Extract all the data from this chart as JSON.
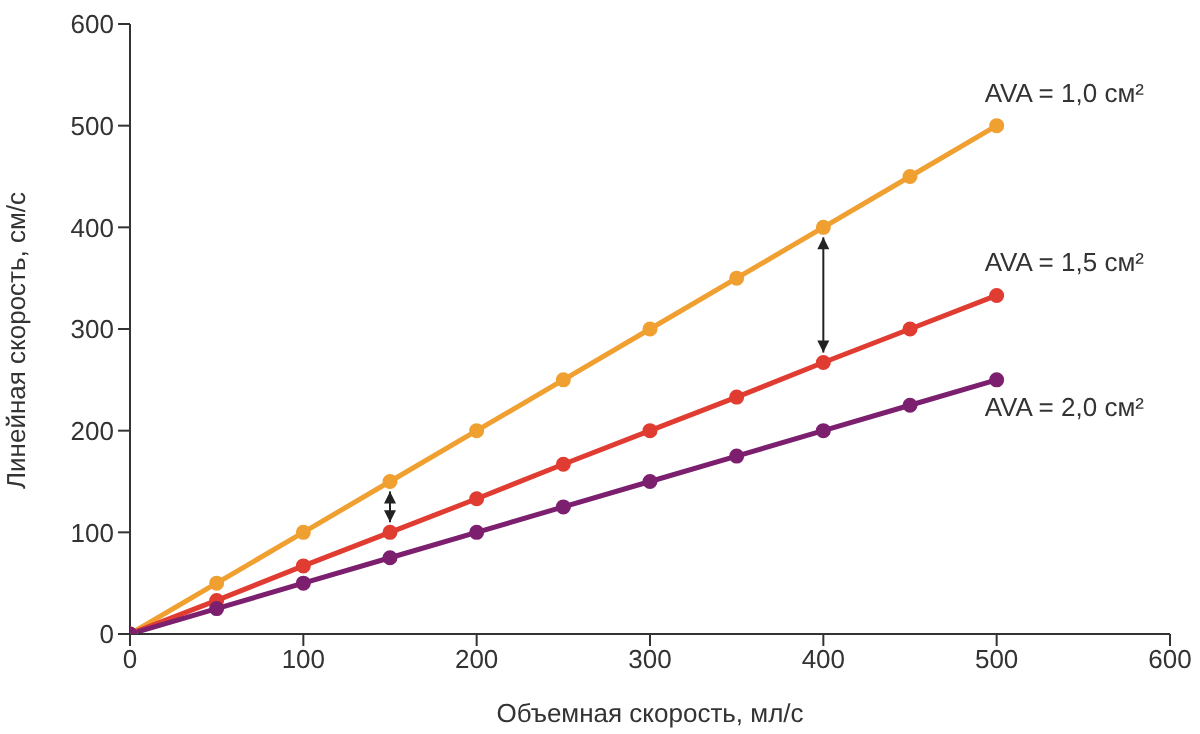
{
  "chart_data": {
    "type": "line",
    "xlabel": "Объемная скорость, мл/с",
    "ylabel": "Линейная скорость, см/с",
    "x": [
      0,
      50,
      100,
      150,
      200,
      250,
      300,
      350,
      400,
      450,
      500
    ],
    "series": [
      {
        "name": "AVA = 1,0 см²",
        "color": "#f0a030",
        "values": [
          0,
          50,
          100,
          150,
          200,
          250,
          300,
          350,
          400,
          450,
          500
        ]
      },
      {
        "name": "AVA = 1,5 см²",
        "color": "#e03c31",
        "values": [
          0,
          33,
          67,
          100,
          133,
          167,
          200,
          233,
          267,
          300,
          333
        ]
      },
      {
        "name": "AVA = 2,0 см²",
        "color": "#7b1f6e",
        "values": [
          0,
          25,
          50,
          75,
          100,
          125,
          150,
          175,
          200,
          225,
          250
        ]
      }
    ],
    "xlim": [
      0,
      600
    ],
    "xticks": [
      0,
      100,
      200,
      300,
      400,
      500,
      600
    ],
    "ylim": [
      0,
      600
    ],
    "yticks": [
      0,
      100,
      200,
      300,
      400,
      500,
      600
    ],
    "marker": "circle",
    "line_style": "solid"
  }
}
